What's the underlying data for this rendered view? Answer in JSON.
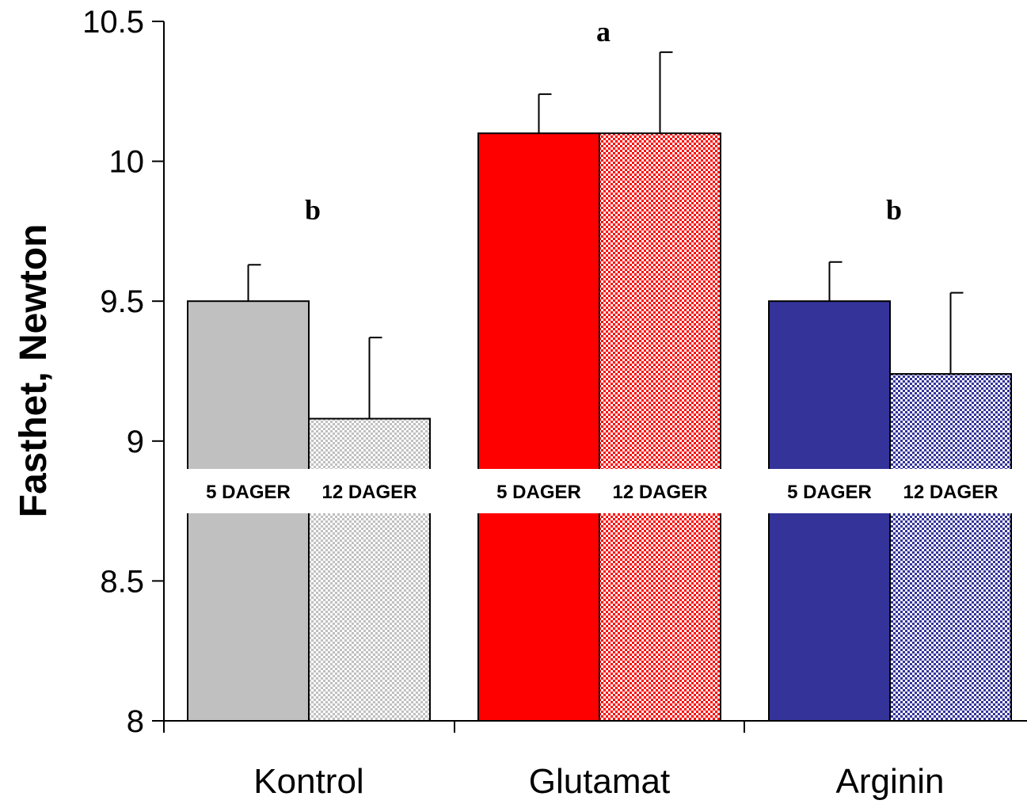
{
  "chart_data": {
    "type": "bar",
    "title": "",
    "xlabel": "",
    "ylabel": "Fasthet, Newton",
    "ylim": [
      8,
      10.5
    ],
    "yticks": [
      "8",
      "8.5",
      "9",
      "9.5",
      "10",
      "10.5"
    ],
    "grid": false,
    "categories": [
      "Kontrol",
      "Glutamat",
      "Arginin"
    ],
    "series": [
      {
        "name": "5 DAGER",
        "values": [
          9.5,
          10.1,
          9.5
        ],
        "errors": [
          0.13,
          0.14,
          0.14
        ],
        "pattern": "solid"
      },
      {
        "name": "12 DAGER",
        "values": [
          9.08,
          10.1,
          9.24
        ],
        "errors": [
          0.29,
          0.29,
          0.29
        ],
        "pattern": "checker"
      }
    ],
    "colors": [
      "#c0c0c0",
      "#ff0000",
      "#333399"
    ],
    "significance": [
      "b",
      "a",
      "b"
    ],
    "bar_band_labels": [
      "5 DAGER",
      "12 DAGER"
    ]
  }
}
